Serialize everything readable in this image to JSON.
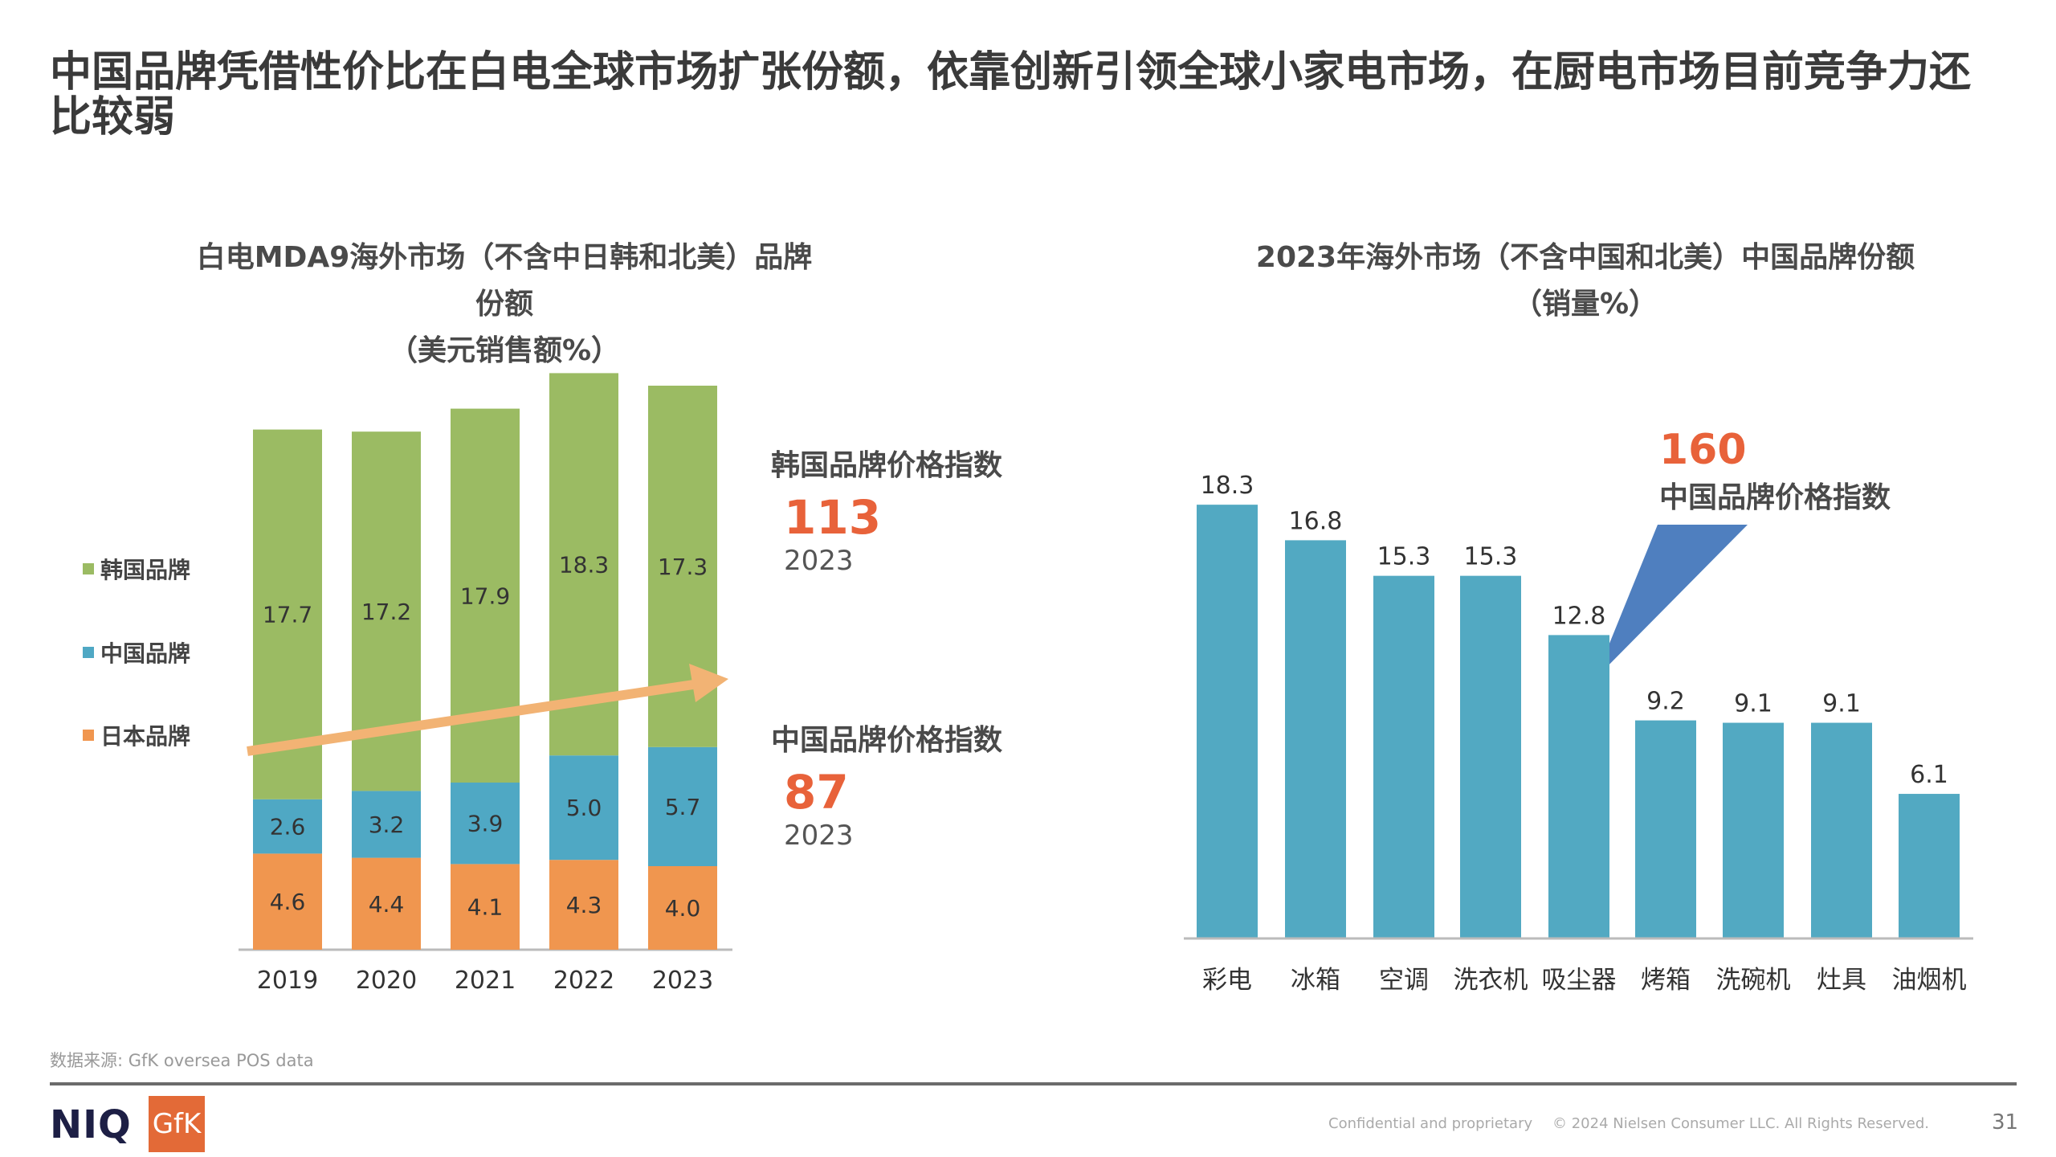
{
  "header": {
    "title": "中国品牌凭借性价比在白电全球市场扩张份额，依靠创新引领全球小家电市场，在厨电市场目前竞争力还比较弱"
  },
  "chart_data": [
    {
      "type": "bar",
      "stacked": true,
      "title": "白电MDA9海外市场（不含中日韩和北美）品牌份额",
      "subtitle": "（美元销售额%）",
      "categories": [
        "2019",
        "2020",
        "2021",
        "2022",
        "2023"
      ],
      "series": [
        {
          "name": "日本品牌",
          "color": "#f0964f",
          "values": [
            4.6,
            4.4,
            4.1,
            4.3,
            4.0
          ],
          "labels": [
            "4.6",
            "4.4",
            "4.1",
            "4.3",
            "4.0"
          ]
        },
        {
          "name": "中国品牌",
          "color": "#4fa8c4",
          "values": [
            2.6,
            3.2,
            3.9,
            5.0,
            5.7
          ],
          "labels": [
            "2.6",
            "3.2",
            "3.9",
            "5.0",
            "5.7"
          ]
        },
        {
          "name": "韩国品牌",
          "color": "#9bbb63",
          "values": [
            17.7,
            17.2,
            17.9,
            18.3,
            17.3
          ],
          "labels": [
            "17.7",
            "17.2",
            "17.9",
            "18.3",
            "17.3"
          ]
        }
      ],
      "legend_order": [
        "韩国品牌",
        "中国品牌",
        "日本品牌"
      ],
      "legend_position": "left",
      "annotations": [
        {
          "label": "韩国品牌价格指数",
          "value": "113",
          "year": "2023"
        },
        {
          "label": "中国品牌价格指数",
          "value": "87",
          "year": "2023"
        }
      ],
      "trend_arrow_color": "#f2b374"
    },
    {
      "type": "bar",
      "title": "2023年海外市场（不含中国和北美）中国品牌份额",
      "subtitle": "（销量%）",
      "categories": [
        "彩电",
        "冰箱",
        "空调",
        "洗衣机",
        "吸尘器",
        "烤箱",
        "洗碗机",
        "灶具",
        "油烟机"
      ],
      "values": [
        18.3,
        16.8,
        15.3,
        15.3,
        12.8,
        9.2,
        9.1,
        9.1,
        6.1
      ],
      "labels": [
        "18.3",
        "16.8",
        "15.3",
        "15.3",
        "12.8",
        "9.2",
        "9.1",
        "9.1",
        "6.1"
      ],
      "color": "#52a9c2",
      "callout": {
        "value": "160",
        "label": "中国品牌价格指数",
        "color": "#4f7fbf"
      }
    }
  ],
  "footer": {
    "source": "数据来源: GfK oversea POS data",
    "logo_niq": "NIQ",
    "logo_gfk": "GfK",
    "confidential": "Confidential and proprietary",
    "copyright": "© 2024 Nielsen Consumer LLC. All Rights Reserved.",
    "page": "31"
  }
}
